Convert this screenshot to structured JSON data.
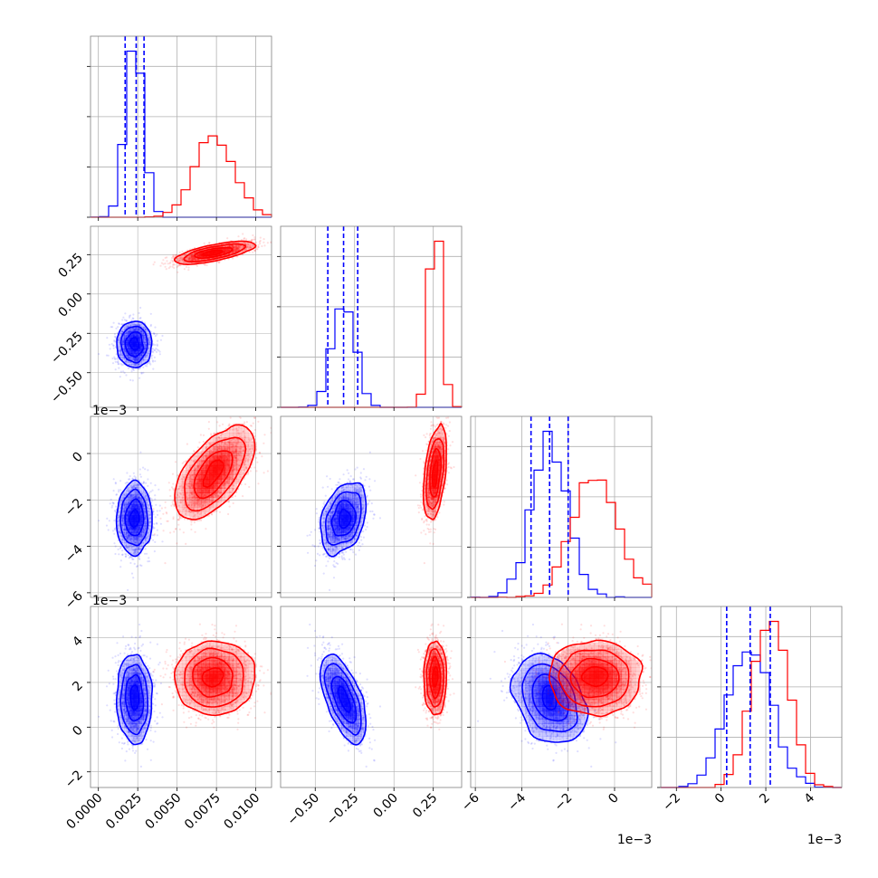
{
  "chart_data": {
    "type": "corner",
    "colors": {
      "series_a": "#0000ff",
      "series_b": "#ff0000",
      "grid": "#b0b0b0"
    },
    "parameters": [
      {
        "range": [
          -0.0005,
          0.011
        ],
        "ticks": [
          0.0,
          0.0025,
          0.005,
          0.0075,
          0.01
        ],
        "tick_labels": [
          "0.0000",
          "0.0025",
          "0.0050",
          "0.0075",
          "0.0100"
        ],
        "offset": ""
      },
      {
        "range": [
          -0.72,
          0.43
        ],
        "ticks": [
          -0.5,
          -0.25,
          0.0,
          0.25
        ],
        "tick_labels": [
          "−0.50",
          "−0.25",
          "0.00",
          "0.25"
        ],
        "offset": ""
      },
      {
        "range": [
          -6.2,
          1.6
        ],
        "ticks": [
          -6,
          -4,
          -2,
          0
        ],
        "tick_labels": [
          "−6",
          "−4",
          "−2",
          "0"
        ],
        "offset": "1e−3"
      },
      {
        "range": [
          -2.7,
          5.4
        ],
        "ticks": [
          -2,
          0,
          2,
          4
        ],
        "tick_labels": [
          "−2",
          "0",
          "2",
          "4"
        ],
        "offset": "1e−3"
      }
    ],
    "series": [
      {
        "color": "#0000ff",
        "mean": [
          0.0023,
          -0.32,
          -2.8,
          1.3
        ],
        "sd": [
          0.00055,
          0.07,
          0.75,
          0.95
        ],
        "corr": [
          [
            1,
            0,
            0,
            0
          ],
          [
            0,
            1,
            0.35,
            -0.6
          ],
          [
            0,
            0.35,
            1,
            -0.3
          ],
          [
            0,
            -0.6,
            -0.3,
            1
          ]
        ],
        "quantiles": [
          [
            0.0017,
            0.0024,
            0.0029
          ],
          [
            -0.42,
            -0.32,
            -0.23
          ],
          [
            -3.6,
            -2.8,
            -2.0
          ],
          [
            0.25,
            1.3,
            2.2
          ]
        ]
      },
      {
        "color": "#ff0000",
        "mean": [
          0.0073,
          0.26,
          -0.9,
          2.2
        ],
        "sd": [
          0.00125,
          0.035,
          1.0,
          0.8
        ],
        "corr": [
          [
            1,
            0.75,
            0.65,
            0
          ],
          [
            0.75,
            1,
            0.45,
            0
          ],
          [
            0.65,
            0.45,
            1,
            0
          ],
          [
            0,
            0,
            0,
            1
          ]
        ],
        "quantiles": []
      }
    ]
  }
}
